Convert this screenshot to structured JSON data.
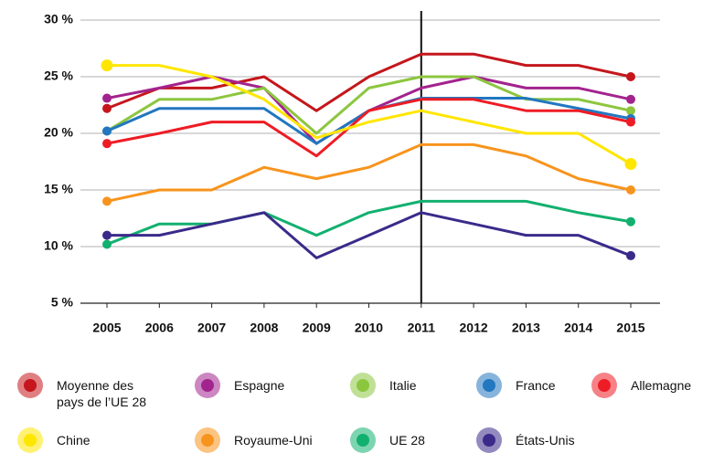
{
  "chart_data": {
    "type": "line",
    "categories": [
      "2005",
      "2006",
      "2007",
      "2008",
      "2009",
      "2010",
      "2011",
      "2012",
      "2013",
      "2014",
      "2015"
    ],
    "reference_line": "2011",
    "ylim": [
      5,
      30
    ],
    "yticks": [
      {
        "value": 5,
        "label": "5 %"
      },
      {
        "value": 10,
        "label": "10 %"
      },
      {
        "value": 15,
        "label": "15 %"
      },
      {
        "value": 20,
        "label": "20 %"
      },
      {
        "value": 25,
        "label": "25 %"
      },
      {
        "value": 30,
        "label": "30 %"
      }
    ],
    "grid": true,
    "series": [
      {
        "name": "Moyenne des pays de l’UE 28",
        "color": "#c4161c",
        "values": [
          22.2,
          24,
          24,
          25,
          22,
          25,
          27,
          27,
          26,
          26,
          25
        ]
      },
      {
        "name": "Espagne",
        "color": "#a3238e",
        "values": [
          23.1,
          24,
          25,
          24,
          19.1,
          22,
          24,
          25,
          24,
          24,
          23
        ]
      },
      {
        "name": "Italie",
        "color": "#8cc63f",
        "values": [
          20.2,
          23,
          23,
          24,
          20,
          24,
          25,
          25,
          23,
          23,
          22
        ]
      },
      {
        "name": "France",
        "color": "#2277c0",
        "values": [
          20.2,
          22.2,
          22.2,
          22.2,
          19.1,
          22,
          23.1,
          23.1,
          23.1,
          22.2,
          21.3
        ]
      },
      {
        "name": "Allemagne",
        "color": "#ee1c25",
        "values": [
          19.1,
          20,
          21,
          21,
          18,
          22,
          23,
          23,
          22,
          22,
          21
        ]
      },
      {
        "name": "Chine",
        "color": "#ffe600",
        "values": [
          26,
          26,
          25,
          23,
          19.6,
          21,
          22,
          21,
          20,
          20,
          17.3
        ]
      },
      {
        "name": "Royaume-Uni",
        "color": "#f7941d",
        "values": [
          14,
          15,
          15,
          17,
          16,
          17,
          19,
          19,
          18,
          16,
          15
        ]
      },
      {
        "name": "UE 28",
        "color": "#12b06f",
        "values": [
          10.2,
          12,
          12,
          13,
          11,
          13,
          14,
          14,
          14,
          13,
          12.2
        ]
      },
      {
        "name": "États-Unis",
        "color": "#3b2a8a",
        "values": [
          11,
          11,
          12,
          13,
          9,
          11,
          13,
          12,
          11,
          11,
          9.2
        ]
      }
    ]
  }
}
